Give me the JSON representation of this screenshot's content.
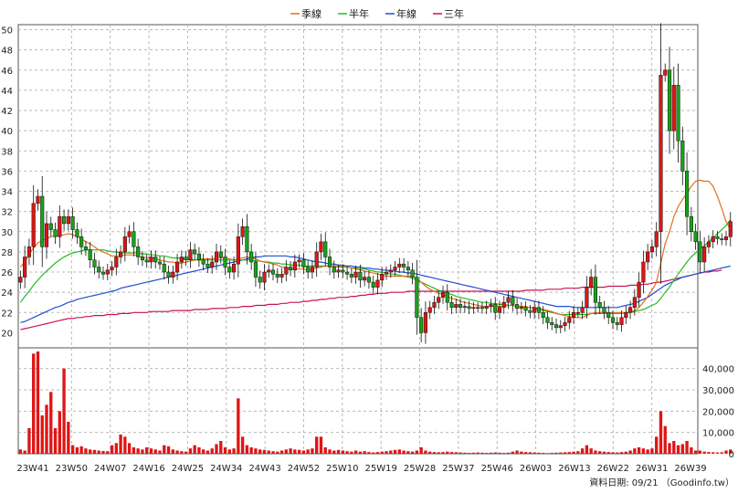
{
  "chart_data": {
    "type": "candlestick",
    "legend": [
      {
        "name": "季線",
        "color": "#e07020"
      },
      {
        "name": "半年",
        "color": "#22bb22"
      },
      {
        "name": "年線",
        "color": "#1f4fd0"
      },
      {
        "name": "三年",
        "color": "#cc1155"
      }
    ],
    "price_axis": {
      "ticks": [
        "20",
        "22",
        "24",
        "26",
        "28",
        "30",
        "32",
        "34",
        "36",
        "38",
        "40",
        "42",
        "44",
        "46",
        "48",
        "50"
      ],
      "ylim": [
        18.5,
        50.5
      ]
    },
    "volume_axis": {
      "ticks": [
        "0",
        "10,000",
        "20,000",
        "30,000",
        "40,000"
      ],
      "ylim": [
        0,
        48000
      ]
    },
    "x_ticks": [
      "23W41",
      "23W50",
      "24W07",
      "24W16",
      "24W25",
      "24W34",
      "24W43",
      "24W52",
      "25W10",
      "25W19",
      "25W28",
      "25W37",
      "25W46",
      "26W03",
      "26W13",
      "26W22",
      "26W31",
      "26W39"
    ],
    "week_count": 156,
    "close": [
      25.5,
      27.5,
      28.5,
      32.8,
      33.5,
      28.5,
      30.8,
      30.2,
      29.5,
      31.5,
      30.8,
      31.5,
      30.2,
      29.5,
      28.5,
      28.2,
      27.2,
      26.5,
      26.0,
      25.8,
      26.2,
      26.5,
      27.5,
      28.0,
      29.5,
      30.0,
      28.5,
      27.5,
      27.2,
      27.0,
      27.5,
      27.0,
      26.8,
      26.0,
      25.5,
      26.0,
      27.0,
      27.5,
      27.2,
      28.2,
      27.8,
      27.2,
      26.8,
      26.5,
      27.0,
      28.0,
      27.5,
      26.5,
      26.0,
      26.8,
      29.5,
      30.5,
      28.0,
      27.0,
      25.5,
      25.0,
      26.0,
      26.2,
      25.8,
      25.5,
      25.8,
      26.5,
      26.2,
      27.0,
      27.2,
      26.5,
      26.0,
      26.5,
      28.0,
      29.0,
      27.5,
      26.5,
      26.0,
      26.2,
      26.0,
      25.8,
      25.5,
      26.0,
      25.2,
      25.5,
      25.0,
      24.5,
      25.2,
      25.8,
      26.0,
      26.2,
      26.5,
      26.8,
      26.5,
      26.2,
      25.5,
      21.5,
      20.0,
      22.0,
      22.5,
      23.0,
      23.5,
      24.0,
      23.0,
      22.5,
      22.8,
      22.5,
      22.6,
      22.4,
      22.5,
      22.5,
      22.4,
      22.6,
      22.8,
      22.0,
      22.5,
      23.0,
      23.5,
      22.8,
      22.4,
      22.5,
      22.2,
      22.0,
      22.5,
      22.0,
      21.5,
      21.0,
      20.8,
      20.5,
      20.7,
      21.0,
      21.5,
      22.0,
      22.0,
      22.5,
      24.5,
      25.5,
      23.0,
      22.5,
      22.0,
      21.5,
      21.0,
      20.8,
      21.5,
      22.0,
      22.5,
      23.5,
      25.0,
      27.0,
      28.0,
      28.5,
      30.0,
      45.5,
      46.0,
      40.0,
      44.5,
      39.0,
      36.0,
      31.5,
      30.0,
      29.0,
      27.0,
      28.5,
      29.0,
      29.5,
      29.3,
      29.2,
      29.5,
      31.0
    ],
    "ma_quarter": [
      26.5,
      27.0,
      27.8,
      28.4,
      28.9,
      29.1,
      29.3,
      29.5,
      29.6,
      29.6,
      29.7,
      29.8,
      29.7,
      29.5,
      29.3,
      29.0,
      28.8,
      28.5,
      28.2,
      28.0,
      27.8,
      27.6,
      27.6,
      27.6,
      27.7,
      27.7,
      27.7,
      27.6,
      27.5,
      27.4,
      27.4,
      27.3,
      27.2,
      27.1,
      27.0,
      27.0,
      26.9,
      26.9,
      27.0,
      27.1,
      27.2,
      27.3,
      27.3,
      27.3,
      27.3,
      27.4,
      27.4,
      27.4,
      27.3,
      27.2,
      27.3,
      27.4,
      27.5,
      27.4,
      27.3,
      27.1,
      27.0,
      26.9,
      26.8,
      26.7,
      26.5,
      26.4,
      26.3,
      26.3,
      26.3,
      26.3,
      26.2,
      26.3,
      26.4,
      26.5,
      26.6,
      26.6,
      26.6,
      26.6,
      26.6,
      26.5,
      26.4,
      26.3,
      26.2,
      26.1,
      26.0,
      25.9,
      25.8,
      25.7,
      25.6,
      25.6,
      25.6,
      25.6,
      25.6,
      25.6,
      25.6,
      25.4,
      25.0,
      24.6,
      24.3,
      24.1,
      23.9,
      23.8,
      23.6,
      23.4,
      23.3,
      23.1,
      23.0,
      22.9,
      22.8,
      22.7,
      22.6,
      22.6,
      22.6,
      22.6,
      22.6,
      22.6,
      22.7,
      22.7,
      22.6,
      22.6,
      22.6,
      22.5,
      22.5,
      22.4,
      22.3,
      22.2,
      22.1,
      21.9,
      21.8,
      21.7,
      21.6,
      21.5,
      21.5,
      21.5,
      21.7,
      21.9,
      22.0,
      22.0,
      22.0,
      22.0,
      22.0,
      22.0,
      22.0,
      22.0,
      22.1,
      22.2,
      22.5,
      23.0,
      23.6,
      24.2,
      25.0,
      26.9,
      28.8,
      30.0,
      31.5,
      32.5,
      33.2,
      33.8,
      34.5,
      35.0,
      35.1,
      35.0,
      35.0,
      34.5,
      33.5,
      32.3,
      31.0,
      30.2
    ],
    "ma_half": [
      23.0,
      23.6,
      24.1,
      24.7,
      25.2,
      25.7,
      26.1,
      26.5,
      26.9,
      27.2,
      27.5,
      27.7,
      27.9,
      28.0,
      28.1,
      28.2,
      28.2,
      28.2,
      28.2,
      28.2,
      28.1,
      28.0,
      28.0,
      27.9,
      27.9,
      27.9,
      27.9,
      27.9,
      27.8,
      27.8,
      27.7,
      27.7,
      27.6,
      27.6,
      27.5,
      27.4,
      27.4,
      27.3,
      27.3,
      27.3,
      27.2,
      27.2,
      27.2,
      27.2,
      27.2,
      27.2,
      27.2,
      27.2,
      27.2,
      27.2,
      27.2,
      27.2,
      27.2,
      27.2,
      27.1,
      27.1,
      27.0,
      27.0,
      26.9,
      26.9,
      26.8,
      26.8,
      26.7,
      26.7,
      26.7,
      26.6,
      26.6,
      26.6,
      26.6,
      26.6,
      26.6,
      26.6,
      26.6,
      26.5,
      26.5,
      26.5,
      26.4,
      26.4,
      26.3,
      26.3,
      26.2,
      26.1,
      26.0,
      26.0,
      25.9,
      25.8,
      25.8,
      25.7,
      25.6,
      25.5,
      25.4,
      25.2,
      25.0,
      24.8,
      24.6,
      24.4,
      24.2,
      24.1,
      23.9,
      23.8,
      23.6,
      23.5,
      23.4,
      23.3,
      23.2,
      23.1,
      23.0,
      23.0,
      22.9,
      22.9,
      22.8,
      22.8,
      22.7,
      22.7,
      22.6,
      22.6,
      22.5,
      22.5,
      22.4,
      22.3,
      22.2,
      22.1,
      22.0,
      21.9,
      21.8,
      21.8,
      21.8,
      21.8,
      21.8,
      21.8,
      21.8,
      21.9,
      21.9,
      21.9,
      21.9,
      21.9,
      21.9,
      21.9,
      21.9,
      22.0,
      22.0,
      22.1,
      22.2,
      22.3,
      22.5,
      22.7,
      22.9,
      23.4,
      24.0,
      24.5,
      25.2,
      25.8,
      26.4,
      27.0,
      27.5,
      27.9,
      28.3,
      28.6,
      29.0,
      29.4,
      29.8,
      30.2,
      30.6,
      31.2
    ],
    "ma_year": [
      21.0,
      21.1,
      21.3,
      21.5,
      21.7,
      21.9,
      22.1,
      22.3,
      22.5,
      22.6,
      22.8,
      23.0,
      23.1,
      23.3,
      23.4,
      23.5,
      23.6,
      23.7,
      23.8,
      23.9,
      24.0,
      24.1,
      24.2,
      24.4,
      24.5,
      24.6,
      24.7,
      24.8,
      24.9,
      25.0,
      25.1,
      25.2,
      25.3,
      25.4,
      25.5,
      25.6,
      25.7,
      25.8,
      25.9,
      26.0,
      26.1,
      26.2,
      26.3,
      26.4,
      26.5,
      26.6,
      26.7,
      26.8,
      26.9,
      27.0,
      27.1,
      27.2,
      27.3,
      27.4,
      27.5,
      27.5,
      27.6,
      27.6,
      27.6,
      27.6,
      27.6,
      27.6,
      27.5,
      27.5,
      27.4,
      27.3,
      27.2,
      27.1,
      27.0,
      27.0,
      26.9,
      26.8,
      26.8,
      26.7,
      26.7,
      26.6,
      26.6,
      26.5,
      26.5,
      26.4,
      26.4,
      26.3,
      26.3,
      26.2,
      26.2,
      26.1,
      26.1,
      26.0,
      26.0,
      25.9,
      25.9,
      25.8,
      25.7,
      25.6,
      25.5,
      25.4,
      25.3,
      25.2,
      25.1,
      25.0,
      24.9,
      24.8,
      24.7,
      24.6,
      24.5,
      24.4,
      24.3,
      24.2,
      24.1,
      24.0,
      23.9,
      23.8,
      23.7,
      23.6,
      23.5,
      23.4,
      23.3,
      23.2,
      23.1,
      23.0,
      22.9,
      22.8,
      22.7,
      22.6,
      22.6,
      22.6,
      22.6,
      22.5,
      22.5,
      22.5,
      22.5,
      22.5,
      22.5,
      22.5,
      22.5,
      22.5,
      22.5,
      22.5,
      22.6,
      22.7,
      22.8,
      22.9,
      23.1,
      23.3,
      23.5,
      23.8,
      24.1,
      24.4,
      24.7,
      24.9,
      25.1,
      25.3,
      25.5,
      25.6,
      25.7,
      25.8,
      25.9,
      26.0,
      26.1,
      26.2,
      26.3,
      26.4,
      26.5,
      26.6
    ],
    "ma_3year": [
      20.3,
      20.4,
      20.5,
      20.6,
      20.7,
      20.8,
      20.9,
      21.0,
      21.1,
      21.2,
      21.3,
      21.4,
      21.4,
      21.5,
      21.5,
      21.6,
      21.6,
      21.7,
      21.7,
      21.7,
      21.8,
      21.8,
      21.8,
      21.9,
      21.9,
      21.9,
      22.0,
      22.0,
      22.0,
      22.0,
      22.1,
      22.1,
      22.1,
      22.1,
      22.1,
      22.2,
      22.2,
      22.2,
      22.2,
      22.2,
      22.3,
      22.3,
      22.3,
      22.3,
      22.4,
      22.4,
      22.4,
      22.4,
      22.5,
      22.5,
      22.5,
      22.6,
      22.6,
      22.6,
      22.7,
      22.7,
      22.7,
      22.8,
      22.8,
      22.8,
      22.9,
      22.9,
      23.0,
      23.0,
      23.0,
      23.1,
      23.1,
      23.2,
      23.2,
      23.3,
      23.3,
      23.4,
      23.4,
      23.5,
      23.5,
      23.5,
      23.6,
      23.6,
      23.7,
      23.7,
      23.8,
      23.8,
      23.9,
      23.9,
      23.9,
      24.0,
      24.0,
      24.0,
      24.0,
      24.1,
      24.1,
      24.1,
      24.1,
      24.1,
      24.1,
      24.1,
      24.1,
      24.1,
      24.1,
      24.1,
      24.1,
      24.1,
      24.1,
      24.1,
      24.1,
      24.1,
      24.1,
      24.1,
      24.1,
      24.1,
      24.1,
      24.1,
      24.1,
      24.1,
      24.1,
      24.1,
      24.2,
      24.2,
      24.2,
      24.2,
      24.2,
      24.3,
      24.3,
      24.3,
      24.3,
      24.4,
      24.4,
      24.4,
      24.4,
      24.5,
      24.5,
      24.5,
      24.5,
      24.5,
      24.5,
      24.6,
      24.6,
      24.6,
      24.6,
      24.6,
      24.7,
      24.7,
      24.7,
      24.8,
      24.8,
      24.9,
      25.0,
      25.0,
      25.1,
      25.2,
      25.3,
      25.4,
      25.5,
      25.6,
      25.7,
      25.8,
      25.9,
      26.0,
      26.0,
      26.1,
      26.1,
      26.2
    ],
    "volume": [
      2000,
      1500,
      12000,
      47000,
      48000,
      18000,
      23000,
      29000,
      12000,
      20000,
      40000,
      15000,
      4000,
      3000,
      3500,
      2500,
      2000,
      1800,
      1500,
      1300,
      1200,
      4000,
      5000,
      9000,
      8000,
      5000,
      3000,
      2500,
      2000,
      3000,
      2500,
      2000,
      1500,
      4000,
      3500,
      2000,
      1500,
      1200,
      1000,
      2500,
      4000,
      3000,
      2000,
      1500,
      2500,
      4500,
      6000,
      3000,
      2000,
      2500,
      26000,
      8000,
      4000,
      3000,
      2500,
      2000,
      1800,
      1500,
      1200,
      1000,
      1500,
      2000,
      2500,
      2000,
      1800,
      1500,
      2000,
      2500,
      8000,
      8000,
      3000,
      2000,
      1500,
      1800,
      1500,
      1200,
      1000,
      1500,
      1000,
      1200,
      800,
      600,
      800,
      1000,
      1200,
      1500,
      1800,
      2000,
      1500,
      1200,
      1000,
      1500,
      3000,
      1500,
      1000,
      800,
      700,
      800,
      1000,
      800,
      700,
      600,
      500,
      400,
      500,
      600,
      500,
      400,
      500,
      600,
      500,
      400,
      500,
      1000,
      1500,
      1000,
      800,
      700,
      600,
      500,
      400,
      300,
      400,
      500,
      600,
      700,
      800,
      1000,
      1200,
      2500,
      4000,
      2500,
      1500,
      1200,
      1000,
      800,
      700,
      600,
      800,
      1000,
      1500,
      2500,
      3000,
      2500,
      2000,
      2500,
      8000,
      20000,
      13000,
      5000,
      6000,
      4000,
      4500,
      6000,
      3000,
      1500,
      1500,
      1000,
      800,
      700,
      600,
      700,
      1500,
      2000
    ]
  },
  "footer": {
    "credit": "資料日期: 09/21 （Goodinfo.tw）"
  }
}
